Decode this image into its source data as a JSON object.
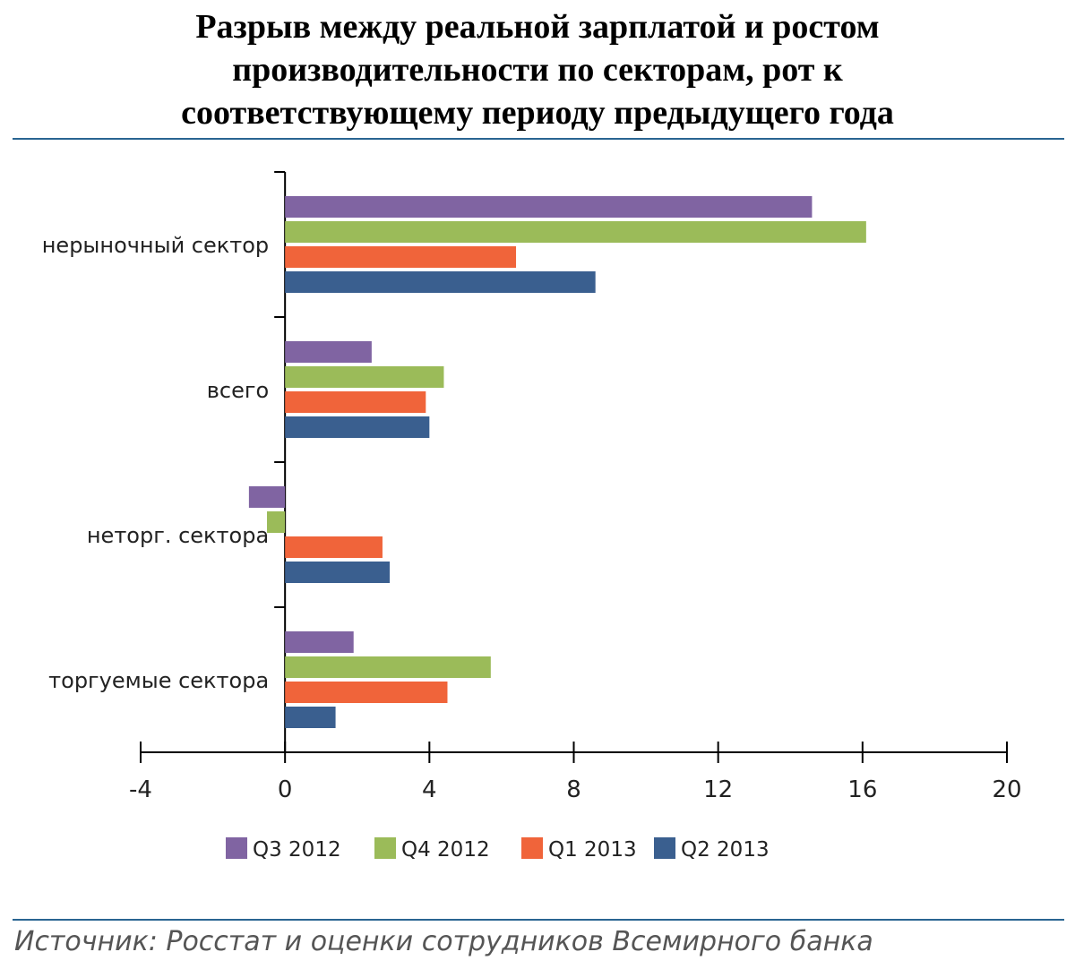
{
  "title_lines": [
    "Разрыв между реальной зарплатой и ростом",
    "производительности по секторам, рот к",
    "соответствующему периоду предыдущего года"
  ],
  "source": "Источник: Росстат и оценки сотрудников Всемирного банка",
  "colors": {
    "accent_rule": "#2a6592",
    "Q3 2012": "#8064a2",
    "Q4 2012": "#9bbb59",
    "Q1 2013": "#f0643a",
    "Q2 2013": "#3a5f8f"
  },
  "chart_data": {
    "type": "bar",
    "orientation": "horizontal",
    "categories": [
      "нерыночный сектор",
      "всего",
      "неторг. сектора",
      "торгуемые сектора"
    ],
    "series": [
      {
        "name": "Q3 2012",
        "values": [
          14.6,
          2.4,
          -1.0,
          1.9
        ]
      },
      {
        "name": "Q4 2012",
        "values": [
          16.1,
          4.4,
          -0.5,
          5.7
        ]
      },
      {
        "name": "Q1 2013",
        "values": [
          6.4,
          3.9,
          2.7,
          4.5
        ]
      },
      {
        "name": "Q2 2013",
        "values": [
          8.6,
          4.0,
          2.9,
          1.4
        ]
      }
    ],
    "xlim": [
      -4,
      20
    ],
    "xticks": [
      "-4",
      "0",
      "4",
      "8",
      "12",
      "16",
      "20"
    ],
    "legend_position": "bottom",
    "grid": false
  }
}
